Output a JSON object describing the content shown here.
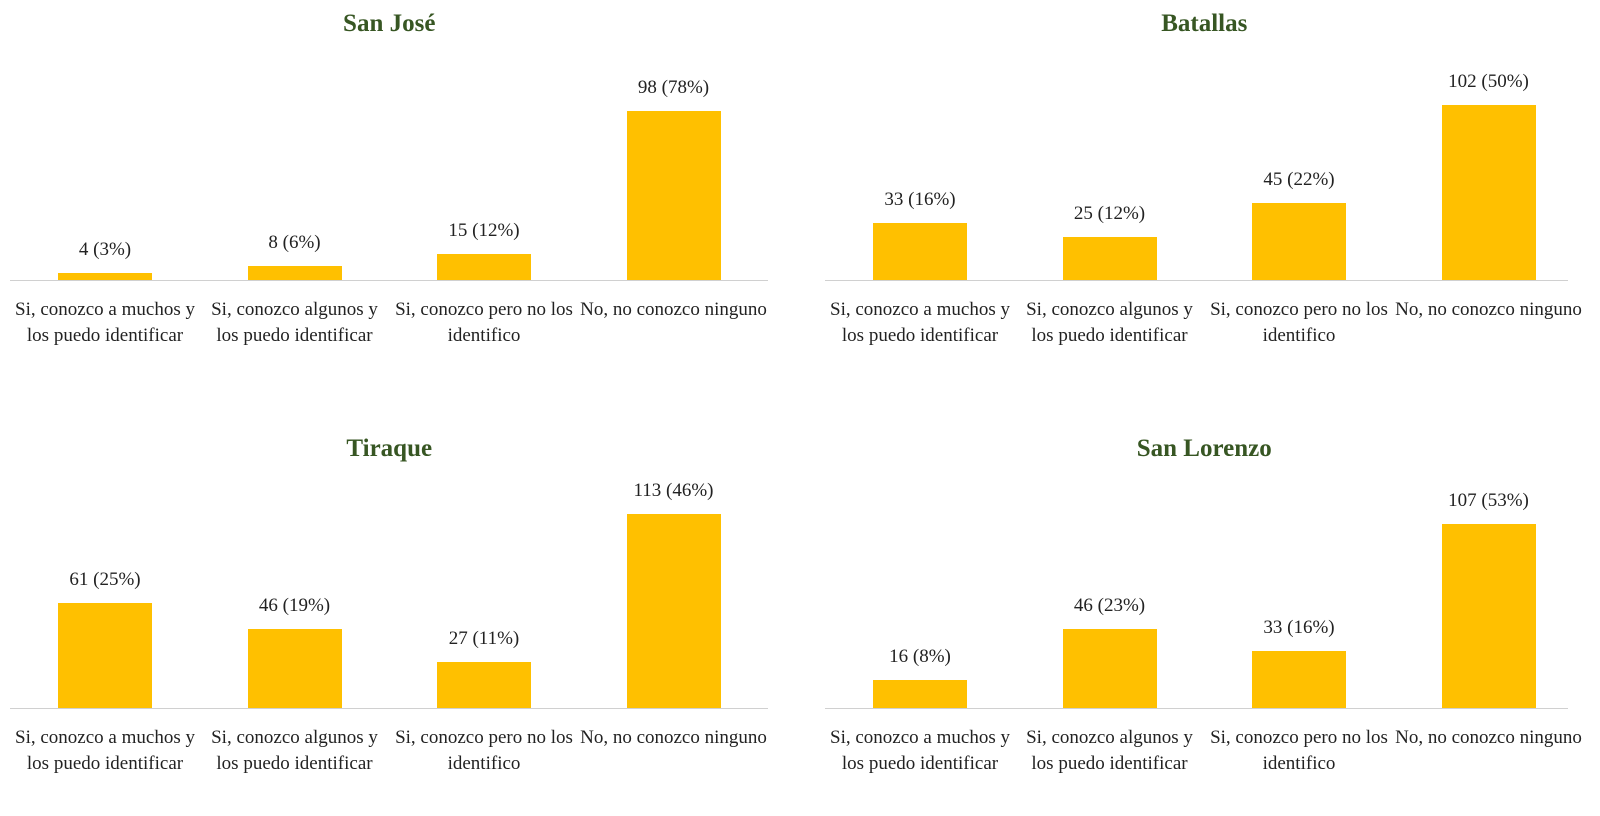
{
  "chart_data": [
    {
      "type": "bar",
      "title": "San José",
      "color": "#ffc000",
      "categories": [
        "Si, conozco a muchos y los puedo identificar",
        "Si, conozco algunos y los puedo identificar",
        "Si, conozco pero no los identifico",
        "No, no conozco ninguno"
      ],
      "values": [
        4,
        8,
        15,
        98
      ],
      "value_labels": [
        "4 (3%)",
        "8 (6%)",
        "15 (12%)",
        "98 (78%)"
      ]
    },
    {
      "type": "bar",
      "title": "Batallas",
      "color": "#ffc000",
      "categories": [
        "Si, conozco a muchos y los puedo identificar",
        "Si, conozco algunos y los puedo identificar",
        "Si, conozco pero no los identifico",
        "No, no conozco ninguno"
      ],
      "values": [
        33,
        25,
        45,
        102
      ],
      "value_labels": [
        "33 (16%)",
        "25 (12%)",
        "45 (22%)",
        "102 (50%)"
      ]
    },
    {
      "type": "bar",
      "title": "Tiraque",
      "color": "#ffc000",
      "categories": [
        "Si, conozco a muchos y los puedo identificar",
        "Si, conozco algunos y los puedo identificar",
        "Si, conozco pero no los identifico",
        "No, no conozco ninguno"
      ],
      "values": [
        61,
        46,
        27,
        113
      ],
      "value_labels": [
        "61 (25%)",
        "46 (19%)",
        "27 (11%)",
        "113 (46%)"
      ]
    },
    {
      "type": "bar",
      "title": "San Lorenzo",
      "color": "#ffc000",
      "categories": [
        "Si, conozco a muchos y los puedo identificar",
        "Si, conozco algunos y los puedo identificar",
        "Si, conozco pero no los identifico",
        "No, no conozco ninguno"
      ],
      "values": [
        16,
        46,
        33,
        107
      ],
      "value_labels": [
        "16 (8%)",
        "46 (23%)",
        "33 (16%)",
        "107 (53%)"
      ]
    }
  ]
}
